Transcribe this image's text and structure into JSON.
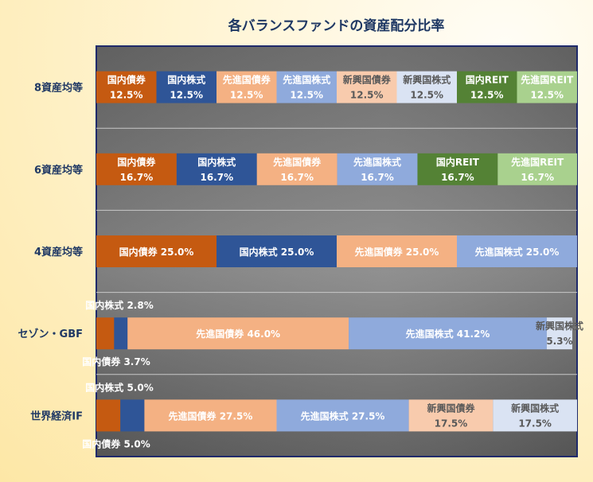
{
  "chart_data": {
    "type": "bar",
    "orientation": "horizontal",
    "stacked": "100%",
    "title": "各バランスファンドの資産配分比率",
    "xlim": [
      0,
      100
    ],
    "grid": true,
    "legend": "none",
    "categories": [
      "8資産均等",
      "6資産均等",
      "4資産均等",
      "セゾン・GBF",
      "世界経済IF"
    ],
    "colors": {
      "国内債券": "#c55a11",
      "国内株式": "#2f5597",
      "先進国債券": "#f4b183",
      "先進国株式": "#8faadc",
      "新興国債券": "#f8cbad",
      "新興国株式": "#dae3f3",
      "国内REIT": "#548235",
      "先進国REIT": "#a9d18e"
    },
    "rows": [
      {
        "category": "8資産均等",
        "segments": [
          {
            "asset": "国内債券",
            "value": 12.5,
            "label_name": "国内債券",
            "label_value": "12.5%"
          },
          {
            "asset": "国内株式",
            "value": 12.5,
            "label_name": "国内株式",
            "label_value": "12.5%"
          },
          {
            "asset": "先進国債券",
            "value": 12.5,
            "label_name": "先進国債券",
            "label_value": "12.5%"
          },
          {
            "asset": "先進国株式",
            "value": 12.5,
            "label_name": "先進国株式",
            "label_value": "12.5%"
          },
          {
            "asset": "新興国債券",
            "value": 12.5,
            "label_name": "新興国債券",
            "label_value": "12.5%"
          },
          {
            "asset": "新興国株式",
            "value": 12.5,
            "label_name": "新興国株式",
            "label_value": "12.5%"
          },
          {
            "asset": "国内REIT",
            "value": 12.5,
            "label_name": "国内REIT",
            "label_value": "12.5%"
          },
          {
            "asset": "先進国REIT",
            "value": 12.5,
            "label_name": "先進国REIT",
            "label_value": "12.5%"
          }
        ]
      },
      {
        "category": "6資産均等",
        "segments": [
          {
            "asset": "国内債券",
            "value": 16.7,
            "label_name": "国内債券",
            "label_value": "16.7%"
          },
          {
            "asset": "国内株式",
            "value": 16.7,
            "label_name": "国内株式",
            "label_value": "16.7%"
          },
          {
            "asset": "先進国債券",
            "value": 16.7,
            "label_name": "先進国債券",
            "label_value": "16.7%"
          },
          {
            "asset": "先進国株式",
            "value": 16.7,
            "label_name": "先進国株式",
            "label_value": "16.7%"
          },
          {
            "asset": "国内REIT",
            "value": 16.7,
            "label_name": "国内REIT",
            "label_value": "16.7%"
          },
          {
            "asset": "先進国REIT",
            "value": 16.7,
            "label_name": "先進国REIT",
            "label_value": "16.7%"
          }
        ]
      },
      {
        "category": "4資産均等",
        "segments": [
          {
            "asset": "国内債券",
            "value": 25.0,
            "label_name": "国内債券 25.0%",
            "label_value": ""
          },
          {
            "asset": "国内株式",
            "value": 25.0,
            "label_name": "国内株式 25.0%",
            "label_value": ""
          },
          {
            "asset": "先進国債券",
            "value": 25.0,
            "label_name": "先進国債券 25.0%",
            "label_value": ""
          },
          {
            "asset": "先進国株式",
            "value": 25.0,
            "label_name": "先進国株式 25.0%",
            "label_value": ""
          }
        ]
      },
      {
        "category": "セゾン・GBF",
        "segments": [
          {
            "asset": "国内債券",
            "value": 3.7,
            "label_name": "",
            "label_value": ""
          },
          {
            "asset": "国内株式",
            "value": 2.8,
            "label_name": "",
            "label_value": ""
          },
          {
            "asset": "先進国債券",
            "value": 46.0,
            "label_name": "先進国債券 46.0%",
            "label_value": ""
          },
          {
            "asset": "先進国株式",
            "value": 41.2,
            "label_name": "先進国株式 41.2%",
            "label_value": ""
          },
          {
            "asset": "新興国株式",
            "value": 5.3,
            "label_name": "新興国株式",
            "label_value": "5.3%"
          }
        ],
        "outside_labels": [
          {
            "text": "国内株式 2.8%",
            "position": "above"
          },
          {
            "text": "国内債券 3.7%",
            "position": "below"
          }
        ]
      },
      {
        "category": "世界経済IF",
        "segments": [
          {
            "asset": "国内債券",
            "value": 5.0,
            "label_name": "",
            "label_value": ""
          },
          {
            "asset": "国内株式",
            "value": 5.0,
            "label_name": "",
            "label_value": ""
          },
          {
            "asset": "先進国債券",
            "value": 27.5,
            "label_name": "先進国債券 27.5%",
            "label_value": ""
          },
          {
            "asset": "先進国株式",
            "value": 27.5,
            "label_name": "先進国株式 27.5%",
            "label_value": ""
          },
          {
            "asset": "新興国債券",
            "value": 17.5,
            "label_name": "新興国債券",
            "label_value": "17.5%"
          },
          {
            "asset": "新興国株式",
            "value": 17.5,
            "label_name": "新興国株式",
            "label_value": "17.5%"
          }
        ],
        "outside_labels": [
          {
            "text": "国内株式 5.0%",
            "position": "above"
          },
          {
            "text": "国内債券 5.0%",
            "position": "below"
          }
        ]
      }
    ]
  }
}
